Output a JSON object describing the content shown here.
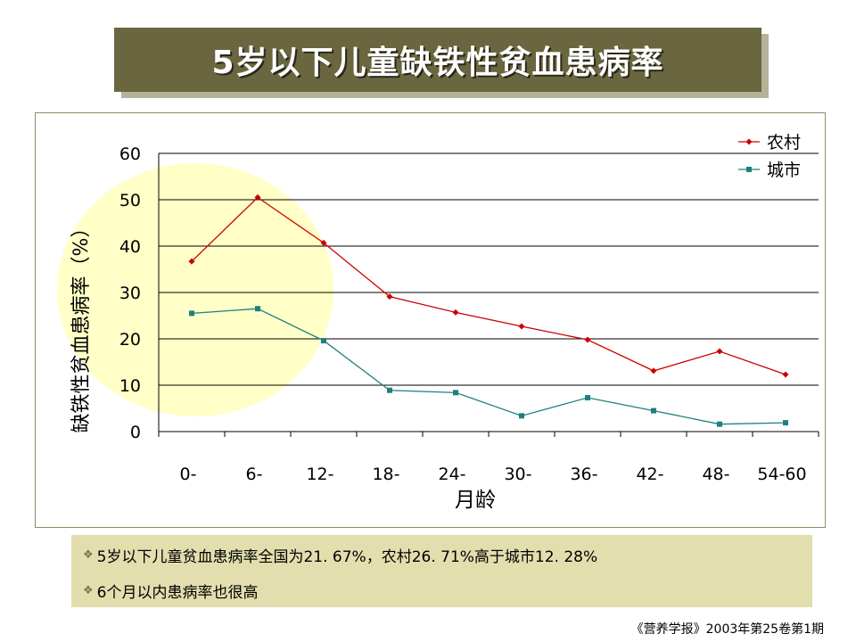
{
  "title": "5岁以下儿童缺铁性贫血患病率",
  "notes": [
    "5岁以下儿童贫血患病率全国为21. 67%，农村26. 71%高于城市12. 28%",
    "6个月以内患病率也很高"
  ],
  "source": "《营养学报》2003年第25卷第1期",
  "colors": {
    "title_bg": "#696640",
    "notes_bg": "#e2deae",
    "highlight": "#ffff99",
    "rural": "#cc0000",
    "urban": "#1f7f7f"
  },
  "chart_data": {
    "type": "line",
    "xlabel": "月龄",
    "ylabel": "缺铁性贫血患病率（%）",
    "categories": [
      "0-",
      "6-",
      "12-",
      "18-",
      "24-",
      "30-",
      "36-",
      "42-",
      "48-",
      "54-60"
    ],
    "ylim": [
      0,
      60
    ],
    "yticks": [
      "0",
      "10",
      "20",
      "30",
      "40",
      "50",
      "60"
    ],
    "grid": true,
    "legend": "top-right",
    "series": [
      {
        "name": "农村",
        "color": "#cc0000",
        "marker": "diamond",
        "values": [
          36.7,
          50.5,
          40.7,
          29.1,
          25.7,
          22.7,
          19.8,
          13.1,
          17.3,
          12.3
        ]
      },
      {
        "name": "城市",
        "color": "#1f7f7f",
        "marker": "square",
        "values": [
          25.5,
          26.5,
          19.6,
          8.9,
          8.4,
          3.4,
          7.3,
          4.5,
          1.6,
          1.9
        ]
      }
    ]
  }
}
